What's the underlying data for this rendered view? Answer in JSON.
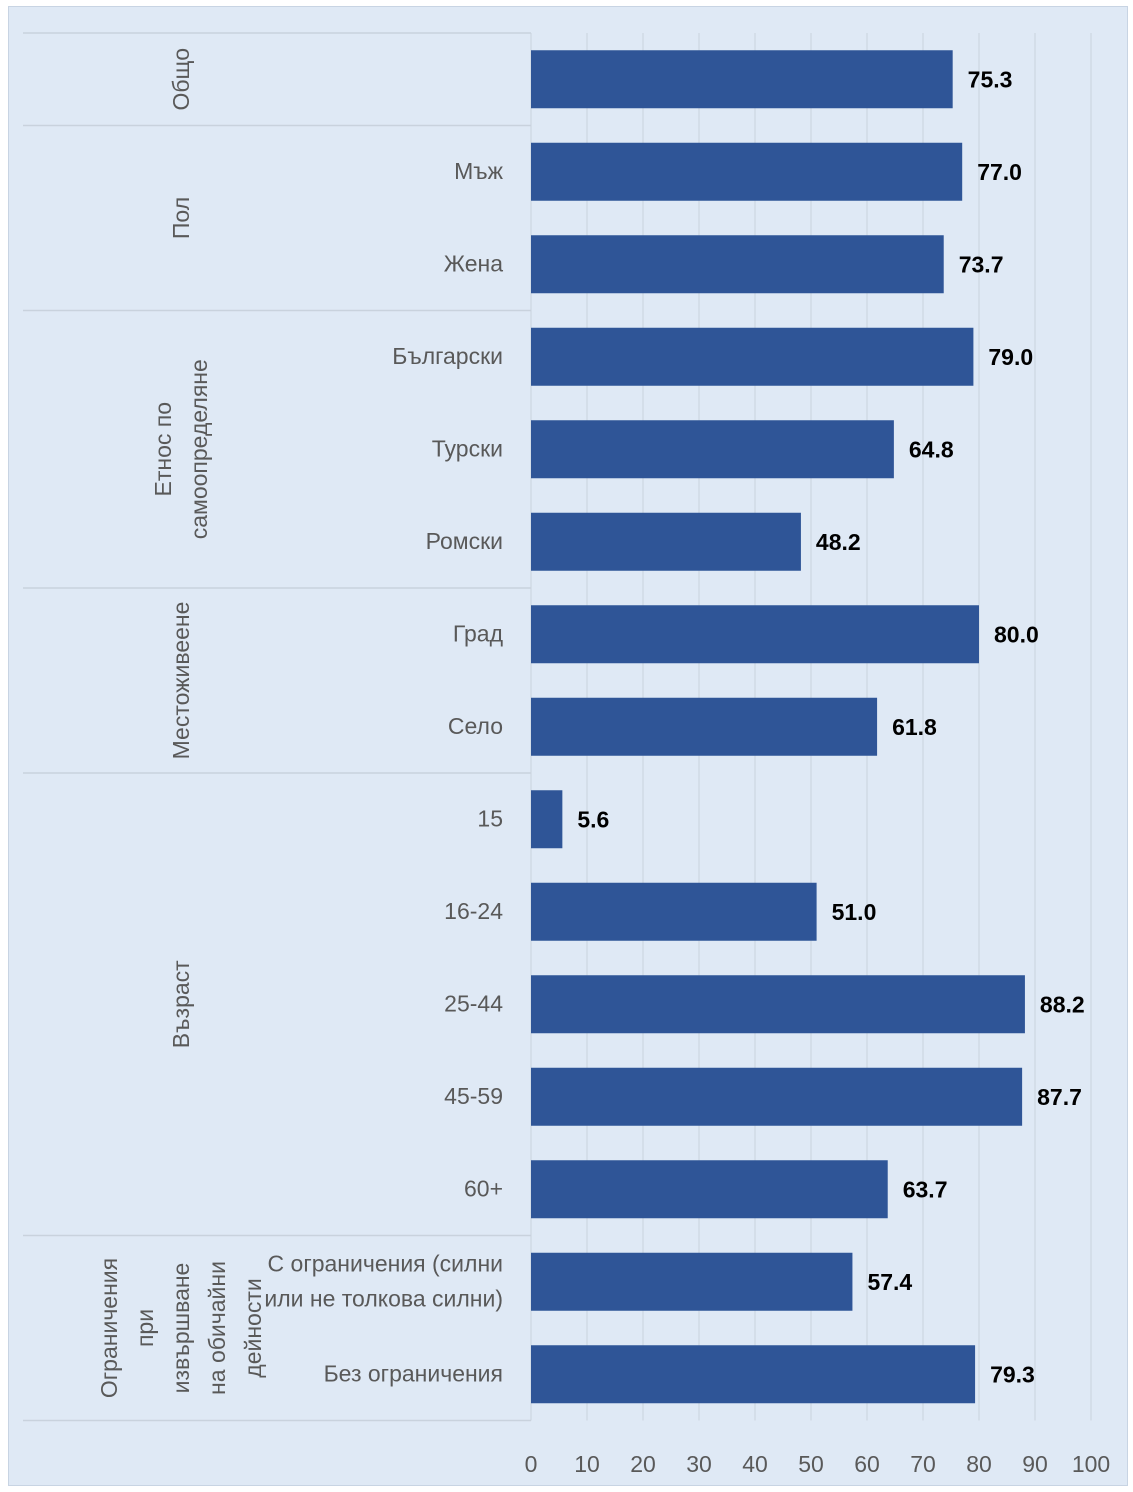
{
  "chart_data": {
    "type": "bar",
    "orientation": "horizontal",
    "xlim": [
      0,
      100
    ],
    "x_ticks": [
      "0",
      "10",
      "20",
      "30",
      "40",
      "50",
      "60",
      "70",
      "80",
      "90",
      "100"
    ],
    "grid": true,
    "groups": [
      {
        "name": "Общо",
        "name_lines": [
          "Общо"
        ],
        "items": [
          {
            "label": "",
            "label_lines": [],
            "value": 75.3,
            "value_label": "75.3"
          }
        ]
      },
      {
        "name": "Пол",
        "name_lines": [
          "Пол"
        ],
        "items": [
          {
            "label": "Мъж",
            "label_lines": [
              "Мъж"
            ],
            "value": 77.0,
            "value_label": "77.0"
          },
          {
            "label": "Жена",
            "label_lines": [
              "Жена"
            ],
            "value": 73.7,
            "value_label": "73.7"
          }
        ]
      },
      {
        "name": "Етнос по самоопределяне",
        "name_lines": [
          "Етнос по",
          "самоопределяне"
        ],
        "items": [
          {
            "label": "Български",
            "label_lines": [
              "Български"
            ],
            "value": 79.0,
            "value_label": "79.0"
          },
          {
            "label": "Турски",
            "label_lines": [
              "Турски"
            ],
            "value": 64.8,
            "value_label": "64.8"
          },
          {
            "label": "Ромски",
            "label_lines": [
              "Ромски"
            ],
            "value": 48.2,
            "value_label": "48.2"
          }
        ]
      },
      {
        "name": "Местоживеене",
        "name_lines": [
          "Местоживеене"
        ],
        "items": [
          {
            "label": "Град",
            "label_lines": [
              "Град"
            ],
            "value": 80.0,
            "value_label": "80.0"
          },
          {
            "label": "Село",
            "label_lines": [
              "Село"
            ],
            "value": 61.8,
            "value_label": "61.8"
          }
        ]
      },
      {
        "name": "Възраст",
        "name_lines": [
          "Възраст"
        ],
        "items": [
          {
            "label": "15",
            "label_lines": [
              "15"
            ],
            "value": 5.6,
            "value_label": "5.6"
          },
          {
            "label": "16-24",
            "label_lines": [
              "16-24"
            ],
            "value": 51.0,
            "value_label": "51.0"
          },
          {
            "label": "25-44",
            "label_lines": [
              "25-44"
            ],
            "value": 88.2,
            "value_label": "88.2"
          },
          {
            "label": "45-59",
            "label_lines": [
              "45-59"
            ],
            "value": 87.7,
            "value_label": "87.7"
          },
          {
            "label": "60+",
            "label_lines": [
              "60+"
            ],
            "value": 63.7,
            "value_label": "63.7"
          }
        ]
      },
      {
        "name": "Ограничения при извършване на обичайни дейности",
        "name_lines": [
          "Ограничения",
          "при",
          "извършване",
          "на обичайни",
          "дейности"
        ],
        "items": [
          {
            "label": "С ограничения (силни или не толкова силни)",
            "label_lines": [
              "С ограничения (силни",
              "или не толкова силни)"
            ],
            "value": 57.4,
            "value_label": "57.4"
          },
          {
            "label": "Без ограничения",
            "label_lines": [
              "Без ограничения"
            ],
            "value": 79.3,
            "value_label": "79.3"
          }
        ]
      }
    ],
    "colors": {
      "bar": "#2f5597",
      "background": "#dfe9f5",
      "grid": "#c9d2dd"
    }
  }
}
